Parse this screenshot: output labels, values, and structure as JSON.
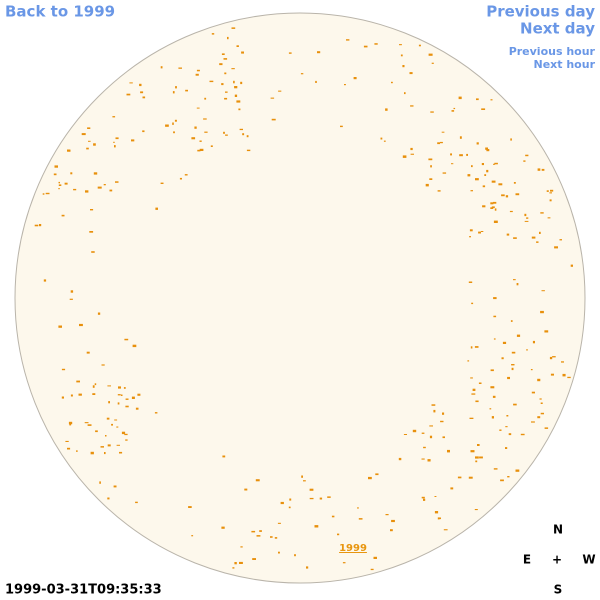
{
  "nav": {
    "back": "Back to 1999",
    "previous_day": "Previous day",
    "next_day": "Next day",
    "previous_hour": "Previous hour",
    "next_hour": "Next hour"
  },
  "image_link": "1999",
  "timestamp": "1999-03-31T09:35:33",
  "compass": {
    "north": "N",
    "east": "E",
    "center": "+",
    "west": "W",
    "south": "S"
  }
}
